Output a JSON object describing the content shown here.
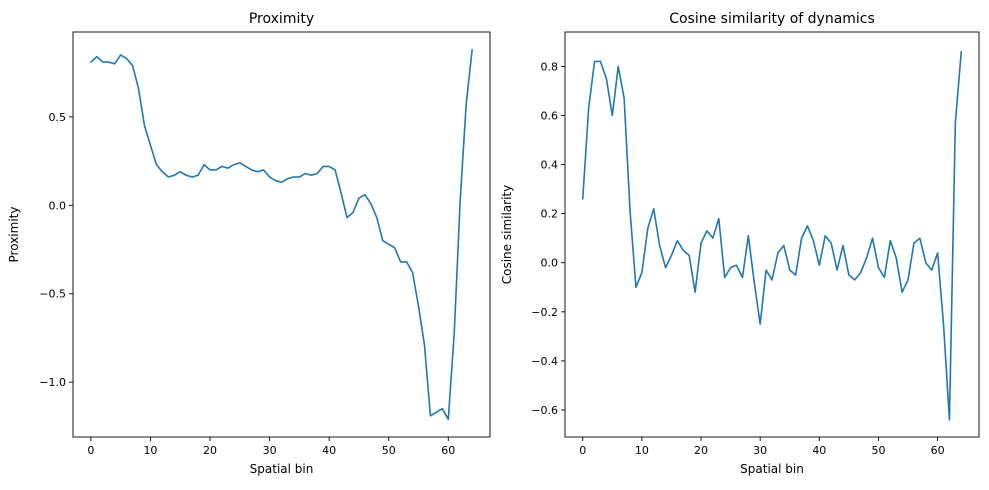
{
  "chart_data": [
    {
      "type": "line",
      "title": "Proximity",
      "xlabel": "Spatial bin",
      "ylabel": "Proximity",
      "xlim": [
        -3,
        67
      ],
      "ylim": [
        -1.31,
        0.98
      ],
      "xticks": [
        0,
        10,
        20,
        30,
        40,
        50,
        60
      ],
      "xtick_labels": [
        "0",
        "10",
        "20",
        "30",
        "40",
        "50",
        "60"
      ],
      "yticks": [
        -1.0,
        -0.5,
        0.0,
        0.5
      ],
      "ytick_labels": [
        "−1.0",
        "−0.5",
        "0.0",
        "0.5"
      ],
      "grid": false,
      "series": [
        {
          "color": "#1f77b4",
          "x": [
            0,
            1,
            2,
            3,
            4,
            5,
            6,
            7,
            8,
            9,
            10,
            11,
            12,
            13,
            14,
            15,
            16,
            17,
            18,
            19,
            20,
            21,
            22,
            23,
            24,
            25,
            26,
            27,
            28,
            29,
            30,
            31,
            32,
            33,
            34,
            35,
            36,
            37,
            38,
            39,
            40,
            41,
            42,
            43,
            44,
            45,
            46,
            47,
            48,
            49,
            50,
            51,
            52,
            53,
            54,
            55,
            56,
            57,
            58,
            59,
            60,
            61,
            62,
            63,
            64
          ],
          "values": [
            0.81,
            0.84,
            0.81,
            0.81,
            0.8,
            0.85,
            0.83,
            0.79,
            0.66,
            0.45,
            0.34,
            0.23,
            0.19,
            0.16,
            0.17,
            0.19,
            0.17,
            0.16,
            0.17,
            0.23,
            0.2,
            0.2,
            0.22,
            0.21,
            0.23,
            0.24,
            0.22,
            0.2,
            0.19,
            0.2,
            0.16,
            0.14,
            0.13,
            0.15,
            0.16,
            0.16,
            0.18,
            0.17,
            0.18,
            0.22,
            0.22,
            0.2,
            0.07,
            -0.07,
            -0.04,
            0.04,
            0.06,
            0.01,
            -0.07,
            -0.2,
            -0.22,
            -0.24,
            -0.32,
            -0.32,
            -0.38,
            -0.57,
            -0.79,
            -1.19,
            -1.17,
            -1.15,
            -1.21,
            -0.72,
            0.03,
            0.57,
            0.88
          ]
        }
      ]
    },
    {
      "type": "line",
      "title": "Cosine similarity of dynamics",
      "xlabel": "Spatial bin",
      "ylabel": "Cosine similarity",
      "xlim": [
        -3,
        67
      ],
      "ylim": [
        -0.71,
        0.94
      ],
      "xticks": [
        0,
        10,
        20,
        30,
        40,
        50,
        60
      ],
      "xtick_labels": [
        "0",
        "10",
        "20",
        "30",
        "40",
        "50",
        "60"
      ],
      "yticks": [
        -0.6,
        -0.4,
        -0.2,
        0.0,
        0.2,
        0.4,
        0.6,
        0.8
      ],
      "ytick_labels": [
        "−0.6",
        "−0.4",
        "−0.2",
        "0.0",
        "0.2",
        "0.4",
        "0.6",
        "0.8"
      ],
      "grid": false,
      "series": [
        {
          "color": "#1f77b4",
          "x": [
            0,
            1,
            2,
            3,
            4,
            5,
            6,
            7,
            8,
            9,
            10,
            11,
            12,
            13,
            14,
            15,
            16,
            17,
            18,
            19,
            20,
            21,
            22,
            23,
            24,
            25,
            26,
            27,
            28,
            29,
            30,
            31,
            32,
            33,
            34,
            35,
            36,
            37,
            38,
            39,
            40,
            41,
            42,
            43,
            44,
            45,
            46,
            47,
            48,
            49,
            50,
            51,
            52,
            53,
            54,
            55,
            56,
            57,
            58,
            59,
            60,
            61,
            62,
            63,
            64
          ],
          "values": [
            0.26,
            0.63,
            0.82,
            0.82,
            0.75,
            0.6,
            0.8,
            0.67,
            0.21,
            -0.1,
            -0.04,
            0.14,
            0.22,
            0.07,
            -0.02,
            0.03,
            0.09,
            0.05,
            0.03,
            -0.12,
            0.08,
            0.13,
            0.1,
            0.18,
            -0.06,
            -0.02,
            -0.01,
            -0.06,
            0.11,
            -0.08,
            -0.25,
            -0.03,
            -0.07,
            0.04,
            0.07,
            -0.03,
            -0.05,
            0.1,
            0.15,
            0.09,
            -0.01,
            0.11,
            0.08,
            -0.03,
            0.07,
            -0.05,
            -0.07,
            -0.04,
            0.02,
            0.1,
            -0.02,
            -0.06,
            0.09,
            0.02,
            -0.12,
            -0.07,
            0.08,
            0.1,
            0.0,
            -0.03,
            0.04,
            -0.25,
            -0.64,
            0.57,
            0.86
          ]
        }
      ]
    }
  ]
}
